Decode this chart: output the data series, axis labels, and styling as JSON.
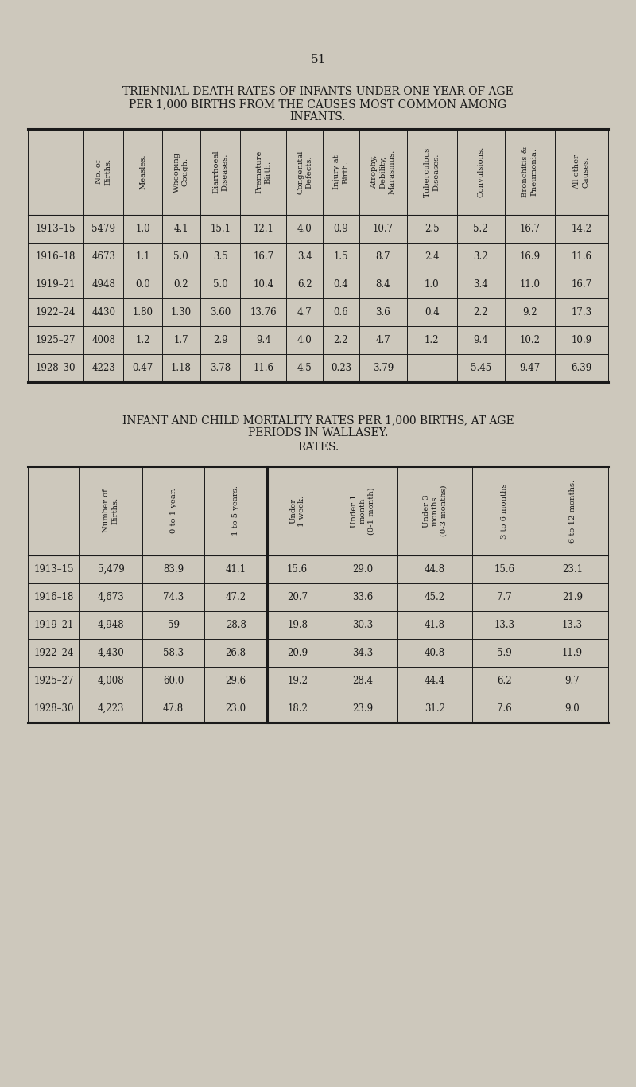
{
  "page_number": "51",
  "bg_color": "#cdc8bc",
  "table1_title1": "TRIENNIAL DEATH RATES OF INFANTS UNDER ONE YEAR OF AGE",
  "table1_title2": "PER 1,000 BIRTHS FROM THE CAUSES MOST COMMON AMONG",
  "table1_title3": "INFANTS.",
  "table1_headers": [
    "No. of\nBirths.",
    "Measles.",
    "Whooping\nCough.",
    "Diarrhoeal\nDiseases.",
    "Premature\nBirth.",
    "Congenital\nDefects.",
    "Injury at\nBirth.",
    "Atrophy,\nDebility,\nMarasmus.",
    "Tuberculous\nDiseases.",
    "Convulsions.",
    "Bronchitis &\nPneumonia.",
    "All other\nCauses."
  ],
  "table1_rows": [
    [
      "1913–15",
      "5479",
      "1.0",
      "4.1",
      "15.1",
      "12.1",
      "4.0",
      "0.9",
      "10.7",
      "2.5",
      "5.2",
      "16.7",
      "14.2"
    ],
    [
      "1916–18",
      "4673",
      "1.1",
      "5.0",
      "3.5",
      "16.7",
      "3.4",
      "1.5",
      "8.7",
      "2.4",
      "3.2",
      "16.9",
      "11.6"
    ],
    [
      "1919–21",
      "4948",
      "0.0",
      "0.2",
      "5.0",
      "10.4",
      "6.2",
      "0.4",
      "8.4",
      "1.0",
      "3.4",
      "11.0",
      "16.7"
    ],
    [
      "1922–24",
      "4430",
      "1.80",
      "1.30",
      "3.60",
      "13.76",
      "4.7",
      "0.6",
      "3.6",
      "0.4",
      "2.2",
      "9.2",
      "17.3"
    ],
    [
      "1925–27",
      "4008",
      "1.2",
      "1.7",
      "2.9",
      "9.4",
      "4.0",
      "2.2",
      "4.7",
      "1.2",
      "9.4",
      "10.2",
      "10.9"
    ],
    [
      "1928–30",
      "4223",
      "0.47",
      "1.18",
      "3.78",
      "11.6",
      "4.5",
      "0.23",
      "3.79",
      "—",
      "5.45",
      "9.47",
      "6.39"
    ]
  ],
  "table2_title1": "INFANT AND CHILD MORTALITY RATES PER 1,000 BIRTHS, AT AGE",
  "table2_title2": "PERIODS IN WALLASEY.",
  "table2_title3": "RATES.",
  "table2_headers": [
    "Number of\nBirths.",
    "0 to 1 year.",
    "1 to 5 years.",
    "Under\n1 week.",
    "Under 1\nmonth\n(0-1 month)",
    "Under 3\nmonths\n(0-3 months)",
    "3 to 6 months",
    "6 to 12 months."
  ],
  "table2_rows": [
    [
      "1913–15",
      "5,479",
      "83.9",
      "41.1",
      "15.6",
      "29.0",
      "44.8",
      "15.6",
      "23.1"
    ],
    [
      "1916–18",
      "4,673",
      "74.3",
      "47.2",
      "20.7",
      "33.6",
      "45.2",
      "7.7",
      "21.9"
    ],
    [
      "1919–21",
      "4,948",
      "59",
      "28.8",
      "19.8",
      "30.3",
      "41.8",
      "13.3",
      "13.3"
    ],
    [
      "1922–24",
      "4,430",
      "58.3",
      "26.8",
      "20.9",
      "34.3",
      "40.8",
      "5.9",
      "11.9"
    ],
    [
      "1925–27",
      "4,008",
      "60.0",
      "29.6",
      "19.2",
      "28.4",
      "44.4",
      "6.2",
      "9.7"
    ],
    [
      "1928–30",
      "4,223",
      "47.8",
      "23.0",
      "18.2",
      "23.9",
      "31.2",
      "7.6",
      "9.0"
    ]
  ],
  "text_color": "#1a1a1a",
  "line_color": "#1a1a1a",
  "header_fontsize": 7.2,
  "cell_fontsize": 8.5,
  "title_fontsize": 10.0,
  "page_num_fontsize": 11.0
}
